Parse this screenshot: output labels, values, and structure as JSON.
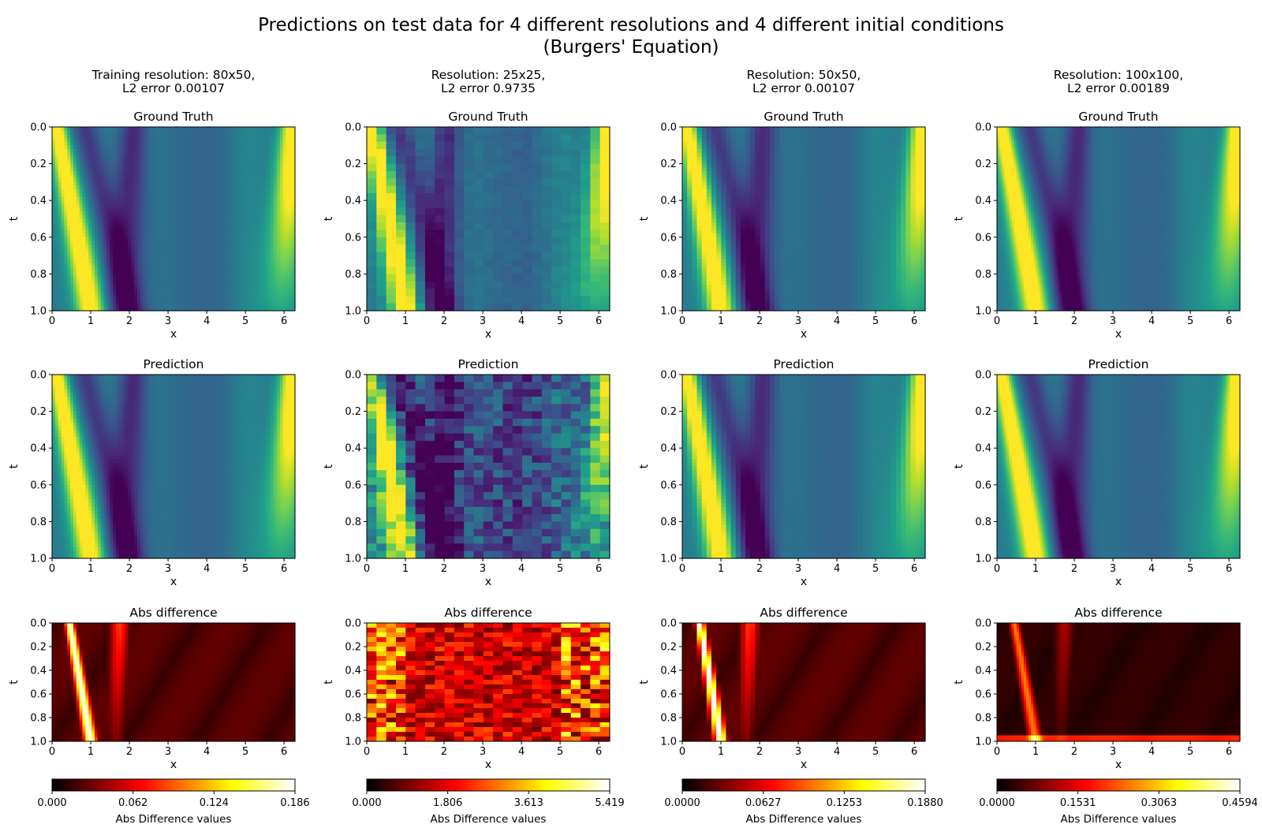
{
  "figure": {
    "title_line1": "Predictions on test data for 4 different resolutions and 4 different initial conditions",
    "title_line2": "(Burgers' Equation)"
  },
  "colors": {
    "field_map": "viridis",
    "diff_map": "hot",
    "axes": "#000000"
  },
  "chart_data": [
    {
      "type": "heatmap",
      "column_title_line1": "Training resolution: 80x50,",
      "column_title_line2": "L2 error 0.00107",
      "resolution": {
        "nx": 80,
        "nt": 50
      },
      "l2_error": 0.00107,
      "xlabel": "x",
      "ylabel": "t",
      "xlim": [
        0,
        6.283
      ],
      "ylim": [
        1.0,
        0.0
      ],
      "xticks": [
        "0",
        "1",
        "2",
        "3",
        "4",
        "5",
        "6"
      ],
      "yticks": [
        "0.0",
        "0.2",
        "0.4",
        "0.6",
        "0.8",
        "1.0"
      ],
      "panels": [
        {
          "title": "Ground Truth",
          "kind": "field"
        },
        {
          "title": "Prediction",
          "kind": "field"
        },
        {
          "title": "Abs difference",
          "kind": "diff"
        }
      ],
      "colorbar": {
        "label": "Abs Difference values",
        "min": 0,
        "max": 0.186,
        "ticks": [
          "0.000",
          "0.062",
          "0.124",
          "0.186"
        ]
      }
    },
    {
      "type": "heatmap",
      "column_title_line1": "Resolution: 25x25,",
      "column_title_line2": "L2 error 0.9735",
      "resolution": {
        "nx": 25,
        "nt": 25
      },
      "l2_error": 0.9735,
      "xlabel": "x",
      "ylabel": "t",
      "xlim": [
        0,
        6.283
      ],
      "ylim": [
        1.0,
        0.0
      ],
      "xticks": [
        "0",
        "1",
        "2",
        "3",
        "4",
        "5",
        "6"
      ],
      "yticks": [
        "0.0",
        "0.2",
        "0.4",
        "0.6",
        "0.8",
        "1.0"
      ],
      "panels": [
        {
          "title": "Ground Truth",
          "kind": "field"
        },
        {
          "title": "Prediction",
          "kind": "field"
        },
        {
          "title": "Abs difference",
          "kind": "diff"
        }
      ],
      "colorbar": {
        "label": "Abs Difference values",
        "min": 0,
        "max": 5.419,
        "ticks": [
          "0.000",
          "1.806",
          "3.613",
          "5.419"
        ]
      }
    },
    {
      "type": "heatmap",
      "column_title_line1": "Resolution: 50x50,",
      "column_title_line2": "L2 error 0.00107",
      "resolution": {
        "nx": 50,
        "nt": 50
      },
      "l2_error": 0.00107,
      "xlabel": "x",
      "ylabel": "t",
      "xlim": [
        0,
        6.283
      ],
      "ylim": [
        1.0,
        0.0
      ],
      "xticks": [
        "0",
        "1",
        "2",
        "3",
        "4",
        "5",
        "6"
      ],
      "yticks": [
        "0.0",
        "0.2",
        "0.4",
        "0.6",
        "0.8",
        "1.0"
      ],
      "panels": [
        {
          "title": "Ground Truth",
          "kind": "field"
        },
        {
          "title": "Prediction",
          "kind": "field"
        },
        {
          "title": "Abs difference",
          "kind": "diff"
        }
      ],
      "colorbar": {
        "label": "Abs Difference values",
        "min": 0,
        "max": 0.188,
        "ticks": [
          "0.0000",
          "0.0627",
          "0.1253",
          "0.1880"
        ]
      }
    },
    {
      "type": "heatmap",
      "column_title_line1": "Resolution: 100x100,",
      "column_title_line2": "L2 error 0.00189",
      "resolution": {
        "nx": 100,
        "nt": 100
      },
      "l2_error": 0.00189,
      "xlabel": "x",
      "ylabel": "t",
      "xlim": [
        0,
        6.283
      ],
      "ylim": [
        1.0,
        0.0
      ],
      "xticks": [
        "0",
        "1",
        "2",
        "3",
        "4",
        "5",
        "6"
      ],
      "yticks": [
        "0.0",
        "0.2",
        "0.4",
        "0.6",
        "0.8",
        "1.0"
      ],
      "panels": [
        {
          "title": "Ground Truth",
          "kind": "field"
        },
        {
          "title": "Prediction",
          "kind": "field"
        },
        {
          "title": "Abs difference",
          "kind": "diff"
        }
      ],
      "colorbar": {
        "label": "Abs Difference values",
        "min": 0,
        "max": 0.4594,
        "ticks": [
          "0.0000",
          "0.1531",
          "0.3063",
          "0.4594"
        ]
      }
    }
  ]
}
